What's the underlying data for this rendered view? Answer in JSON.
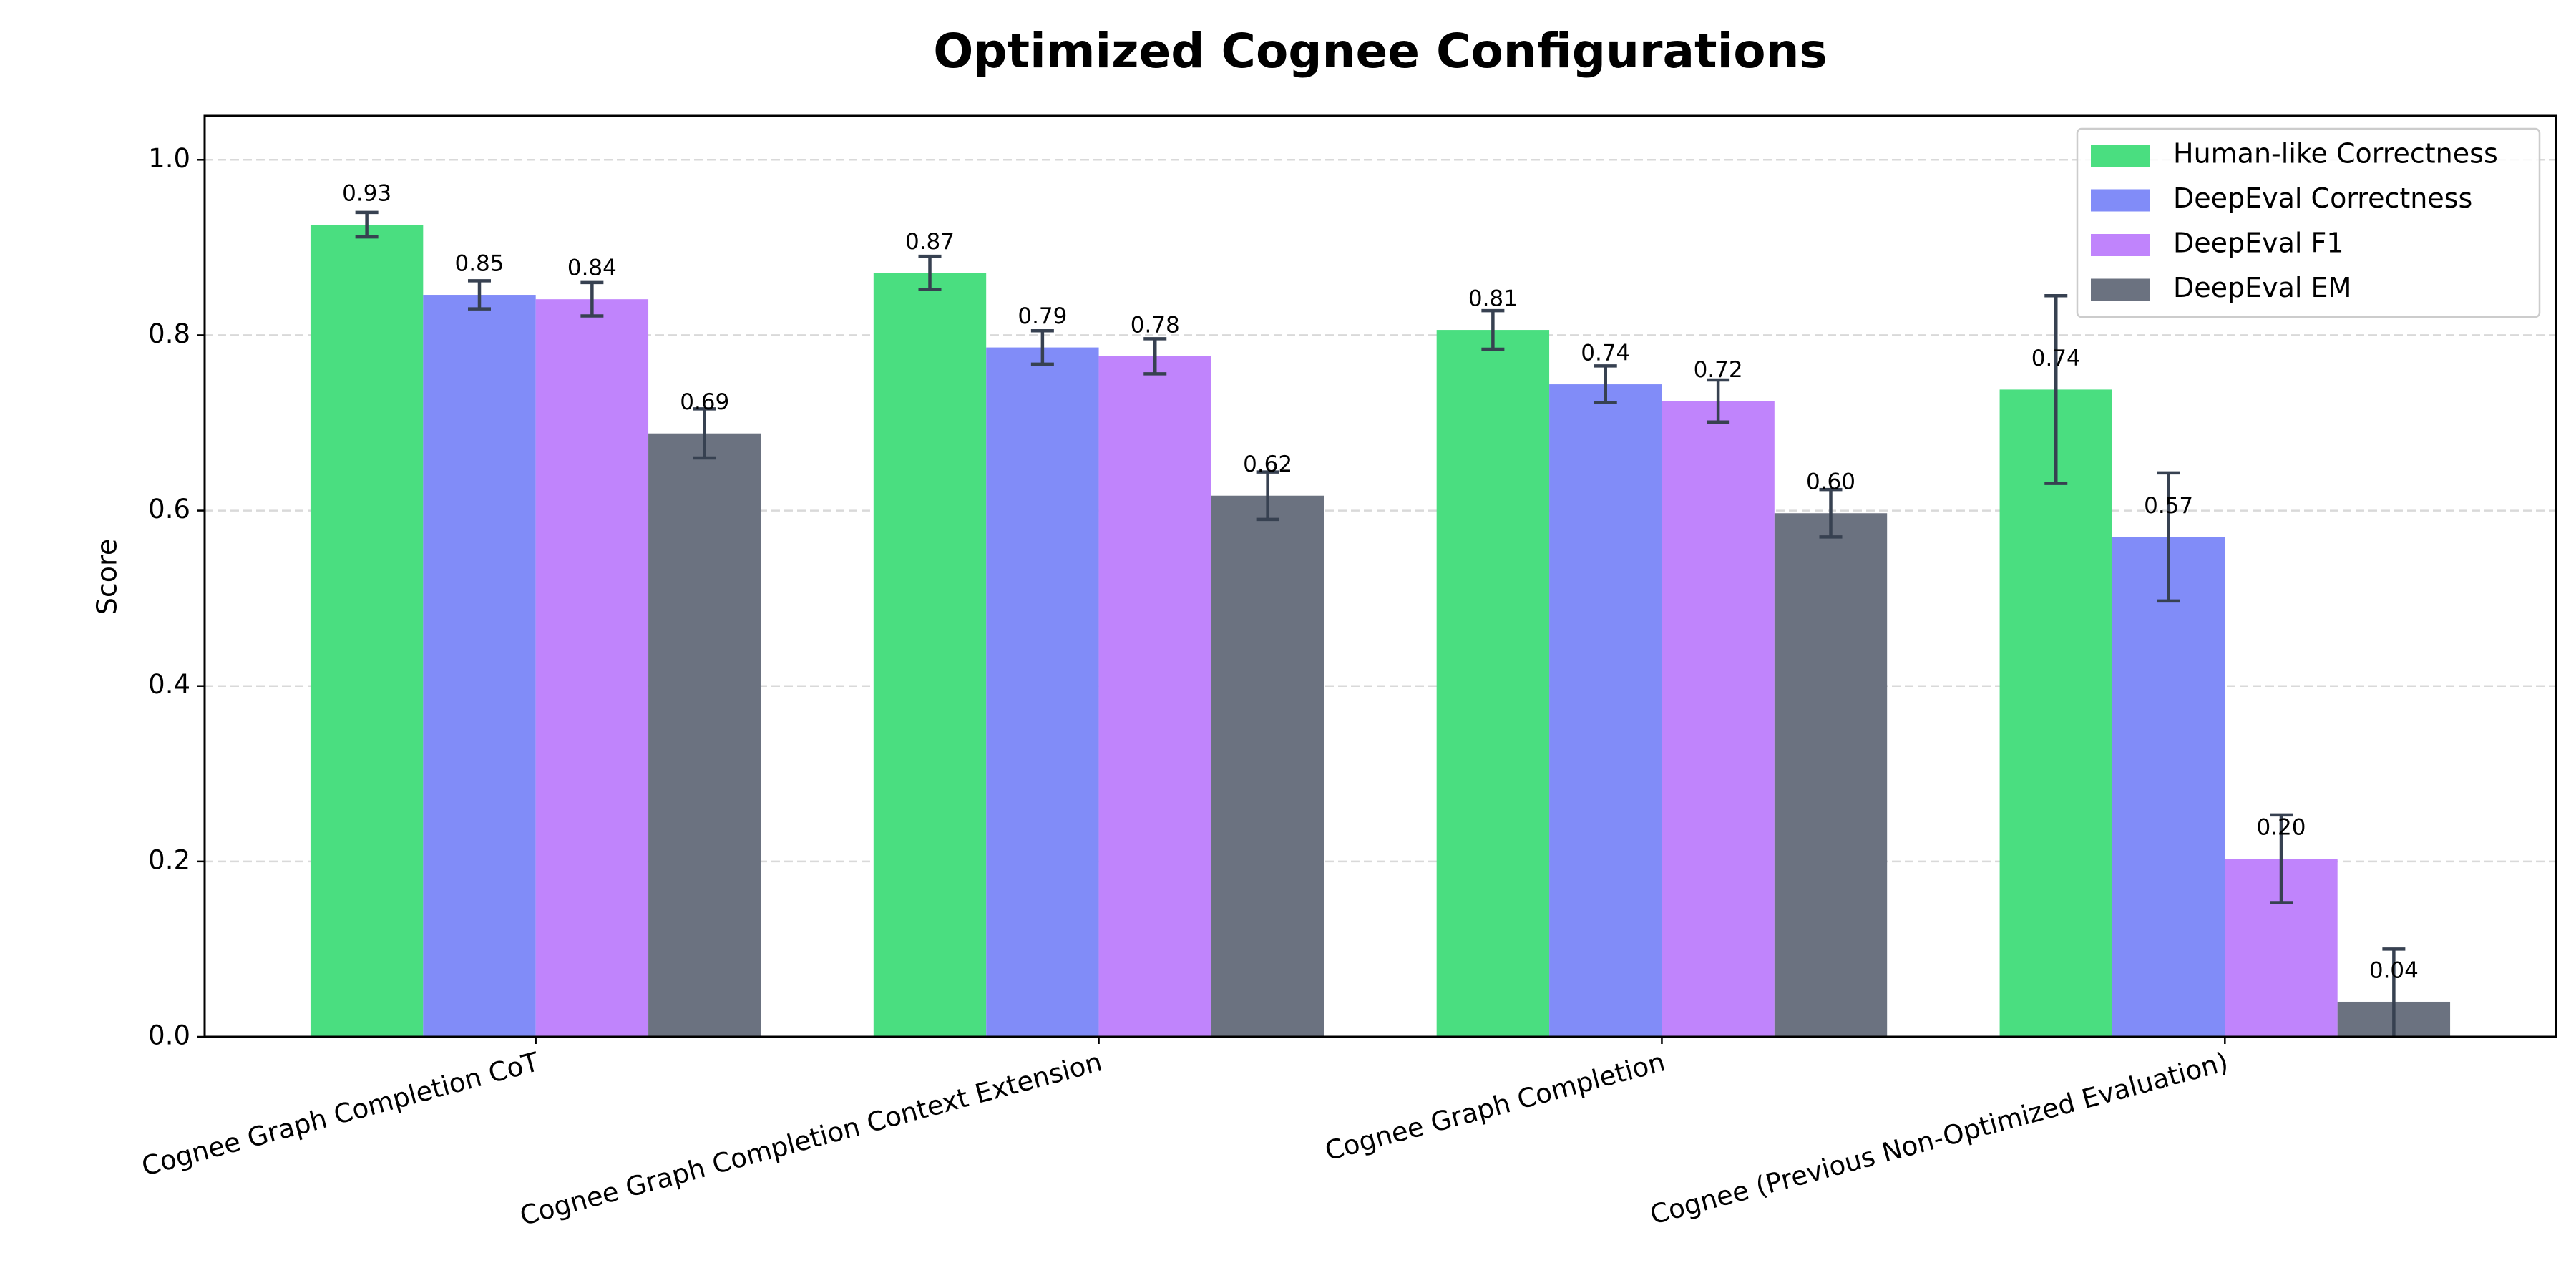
{
  "chart_data": {
    "type": "bar",
    "title": "Optimized Cognee Configurations",
    "y_label": "Score",
    "categories": [
      "Cognee Graph Completion CoT",
      "Cognee Graph Completion Context Extension",
      "Cognee Graph Completion",
      "Cognee (Previous Non-Optimized Evaluation)"
    ],
    "series": [
      {
        "name": "Human-like Correctness",
        "color": "#4ade80",
        "values": [
          0.926,
          0.871,
          0.806,
          0.738
        ],
        "errors": [
          0.014,
          0.019,
          0.022,
          0.107
        ],
        "value_labels": [
          "0.93",
          "0.87",
          "0.81",
          "0.74"
        ]
      },
      {
        "name": "DeepEval Correctness",
        "color": "#818cf8",
        "values": [
          0.846,
          0.786,
          0.744,
          0.57
        ],
        "errors": [
          0.016,
          0.019,
          0.021,
          0.073
        ],
        "value_labels": [
          "0.85",
          "0.79",
          "0.74",
          "0.57"
        ]
      },
      {
        "name": "DeepEval F1",
        "color": "#c084fc",
        "values": [
          0.841,
          0.776,
          0.725,
          0.203
        ],
        "errors": [
          0.019,
          0.02,
          0.024,
          0.05
        ],
        "value_labels": [
          "0.84",
          "0.78",
          "0.72",
          "0.20"
        ]
      },
      {
        "name": "DeepEval EM",
        "color": "#6b7280",
        "values": [
          0.688,
          0.617,
          0.597,
          0.04
        ],
        "errors": [
          0.028,
          0.027,
          0.027,
          0.06
        ],
        "value_labels": [
          "0.69",
          "0.62",
          "0.60",
          "0.04"
        ]
      }
    ],
    "error_color": "#374151",
    "ylim": [
      0,
      1.05
    ],
    "yticks": [
      {
        "value": 0,
        "label": "0.0"
      },
      0.2,
      0.4,
      0.6,
      0.8,
      {
        "value": 1,
        "label": "1.0"
      }
    ],
    "grid": true,
    "legend": "upper right"
  }
}
